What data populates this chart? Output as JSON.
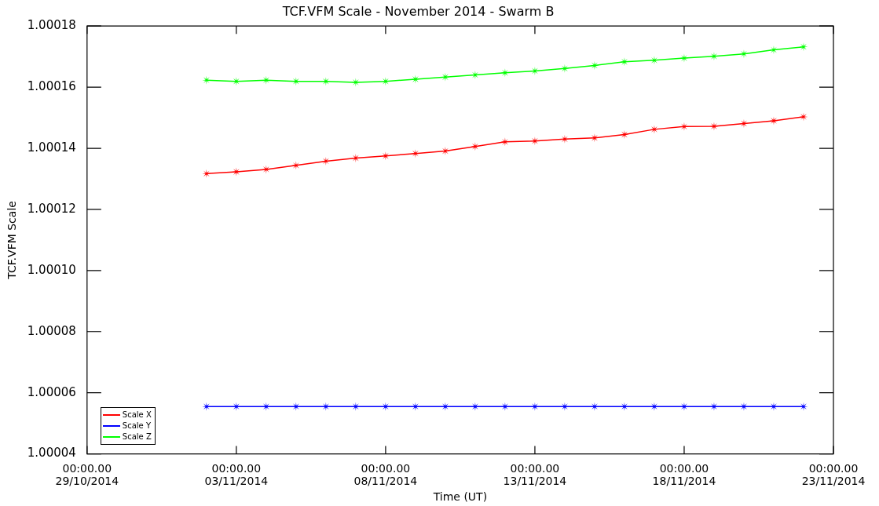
{
  "chart_data": {
    "type": "line",
    "title": "TCF.VFM Scale - November 2014 - Swarm B",
    "xlabel": "Time (UT)",
    "ylabel": "TCF.VFM Scale",
    "x": [
      "2014-11-02",
      "2014-11-03",
      "2014-11-04",
      "2014-11-05",
      "2014-11-06",
      "2014-11-07",
      "2014-11-08",
      "2014-11-09",
      "2014-11-10",
      "2014-11-11",
      "2014-11-12",
      "2014-11-13",
      "2014-11-14",
      "2014-11-15",
      "2014-11-16",
      "2014-11-17",
      "2014-11-18",
      "2014-11-19",
      "2014-11-20",
      "2014-11-21",
      "2014-11-22"
    ],
    "series": [
      {
        "name": "Scale X",
        "color": "#ff0000",
        "values": [
          1.0001317,
          1.0001323,
          1.0001331,
          1.0001344,
          1.0001358,
          1.0001368,
          1.0001375,
          1.0001383,
          1.0001391,
          1.0001406,
          1.0001421,
          1.0001424,
          1.000143,
          1.0001434,
          1.0001445,
          1.0001462,
          1.0001471,
          1.0001472,
          1.0001481,
          1.000149,
          1.0001503
        ]
      },
      {
        "name": "Scale Y",
        "color": "#0000ff",
        "values": [
          1.0000555,
          1.0000555,
          1.0000555,
          1.0000555,
          1.0000555,
          1.0000555,
          1.0000555,
          1.0000555,
          1.0000555,
          1.0000555,
          1.0000555,
          1.0000555,
          1.0000555,
          1.0000555,
          1.0000555,
          1.0000555,
          1.0000555,
          1.0000555,
          1.0000555,
          1.0000555,
          1.0000555
        ]
      },
      {
        "name": "Scale Z",
        "color": "#00ff00",
        "values": [
          1.0001623,
          1.0001619,
          1.0001623,
          1.0001619,
          1.0001619,
          1.0001616,
          1.0001619,
          1.0001626,
          1.0001633,
          1.000164,
          1.0001647,
          1.0001653,
          1.0001661,
          1.0001671,
          1.0001683,
          1.0001688,
          1.0001695,
          1.0001701,
          1.0001709,
          1.0001722,
          1.0001732
        ]
      }
    ],
    "xlim": [
      "2014-10-29",
      "2014-11-23"
    ],
    "xticks": [
      {
        "value": "2014-10-29",
        "label": "00:00.00\n29/10/2014"
      },
      {
        "value": "2014-11-03",
        "label": "00:00.00\n03/11/2014"
      },
      {
        "value": "2014-11-08",
        "label": "00:00.00\n08/11/2014"
      },
      {
        "value": "2014-11-13",
        "label": "00:00.00\n13/11/2014"
      },
      {
        "value": "2014-11-18",
        "label": "00:00.00\n18/11/2014"
      },
      {
        "value": "2014-11-23",
        "label": "00:00.00\n23/11/2014"
      }
    ],
    "ylim": [
      1.00004,
      1.00018
    ],
    "yticks": [
      {
        "value": 1.00004,
        "label": "1.00004"
      },
      {
        "value": 1.00006,
        "label": "1.00006"
      },
      {
        "value": 1.00008,
        "label": "1.00008"
      },
      {
        "value": 1.0001,
        "label": "1.00010"
      },
      {
        "value": 1.00012,
        "label": "1.00012"
      },
      {
        "value": 1.00014,
        "label": "1.00014"
      },
      {
        "value": 1.00016,
        "label": "1.00016"
      },
      {
        "value": 1.00018,
        "label": "1.00018"
      }
    ],
    "grid": false,
    "legend": "bottom left",
    "marker": "star",
    "line_style": "solid"
  }
}
